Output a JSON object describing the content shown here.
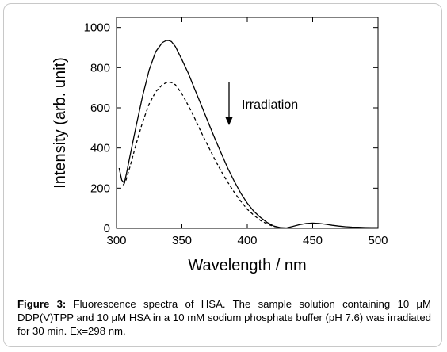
{
  "chart_data": {
    "type": "line",
    "xlabel": "Wavelength / nm",
    "ylabel": "Intensity (arb. unit)",
    "xlim": [
      300,
      500
    ],
    "ylim": [
      0,
      1050
    ],
    "x_ticks": [
      300,
      350,
      400,
      450,
      500
    ],
    "y_ticks": [
      0,
      200,
      400,
      600,
      800,
      1000
    ],
    "grid": false,
    "annotation": {
      "text": "Irradiation",
      "arrow": "down"
    },
    "series": [
      {
        "style": "solid",
        "x": [
          302,
          304,
          306,
          308,
          310,
          315,
          320,
          325,
          330,
          335,
          338,
          340,
          342,
          345,
          350,
          355,
          360,
          365,
          370,
          375,
          380,
          385,
          390,
          395,
          400,
          405,
          410,
          415,
          420,
          425,
          430,
          435,
          440,
          445,
          450,
          455,
          460,
          465,
          470,
          475,
          480,
          485,
          490,
          495,
          500
        ],
        "y": [
          300,
          240,
          225,
          285,
          350,
          510,
          660,
          790,
          880,
          925,
          935,
          935,
          930,
          905,
          840,
          770,
          690,
          610,
          530,
          450,
          375,
          300,
          235,
          175,
          125,
          85,
          55,
          30,
          12,
          4,
          2,
          10,
          18,
          24,
          26,
          24,
          20,
          15,
          11,
          8,
          6,
          5,
          4,
          3,
          3
        ]
      },
      {
        "style": "dashed",
        "x": [
          305,
          307,
          310,
          315,
          320,
          325,
          330,
          335,
          338,
          340,
          342,
          345,
          350,
          355,
          360,
          365,
          370,
          375,
          380,
          385,
          390,
          395,
          400,
          405,
          410,
          415,
          420,
          425
        ],
        "y": [
          215,
          235,
          300,
          420,
          530,
          620,
          680,
          715,
          725,
          728,
          726,
          715,
          670,
          610,
          545,
          475,
          410,
          345,
          285,
          230,
          180,
          135,
          95,
          65,
          40,
          22,
          10,
          4
        ]
      }
    ]
  },
  "caption": {
    "label": "Figure 3:",
    "text": " Fluorescence spectra of HSA. The sample solution containing 10 μM DDP(V)TPP and 10 μM HSA in a 10 mM sodium phosphate buffer (pH 7.6) was irradiated for 30 min. Ex=298 nm."
  }
}
